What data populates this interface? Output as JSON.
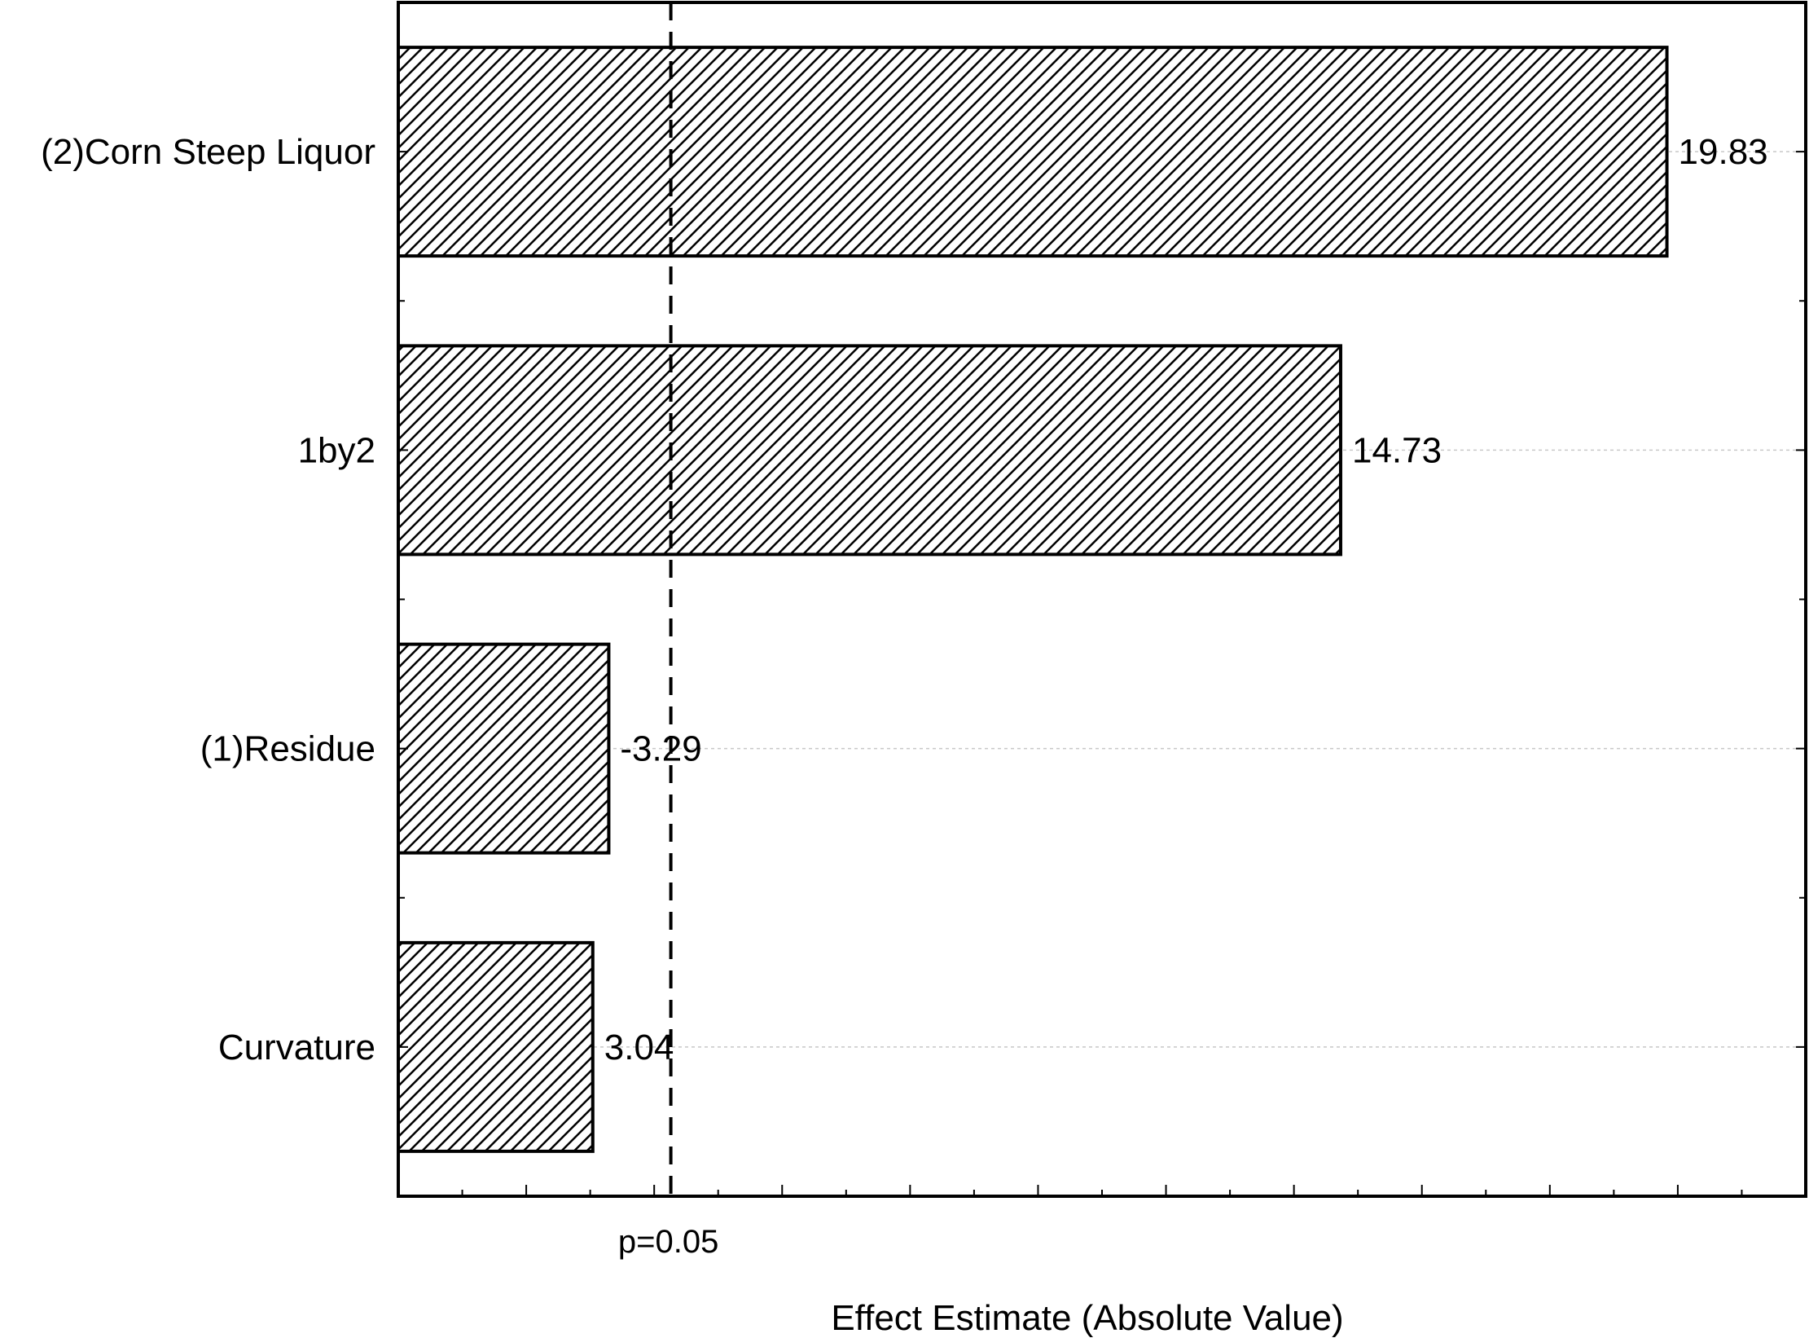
{
  "chart_data": {
    "type": "bar",
    "orientation": "horizontal",
    "categories": [
      "(2)Corn Steep Liquor",
      "1by2",
      "(1)Residue",
      "Curvature"
    ],
    "values": [
      19.83,
      14.73,
      -3.29,
      3.04
    ],
    "value_labels": [
      "19.83",
      "14.73",
      "-3.29",
      "3.04"
    ],
    "xlabel": "Effect Estimate (Absolute Value)",
    "xlim": [
      0,
      22
    ],
    "x_ticks": [
      0,
      2,
      4,
      6,
      8,
      10,
      12,
      14,
      16,
      18,
      20,
      22
    ],
    "x_minor_ticks": [
      1,
      3,
      5,
      7,
      9,
      11,
      13,
      15,
      17,
      19,
      21
    ],
    "reference_line": {
      "value": 4.26,
      "label": "p=0.05",
      "style": "dashed"
    },
    "bar_fill": "diagonal-hatch",
    "bar_color": "#000000",
    "grid": "horizontal dotted at categories",
    "legend": "none"
  }
}
